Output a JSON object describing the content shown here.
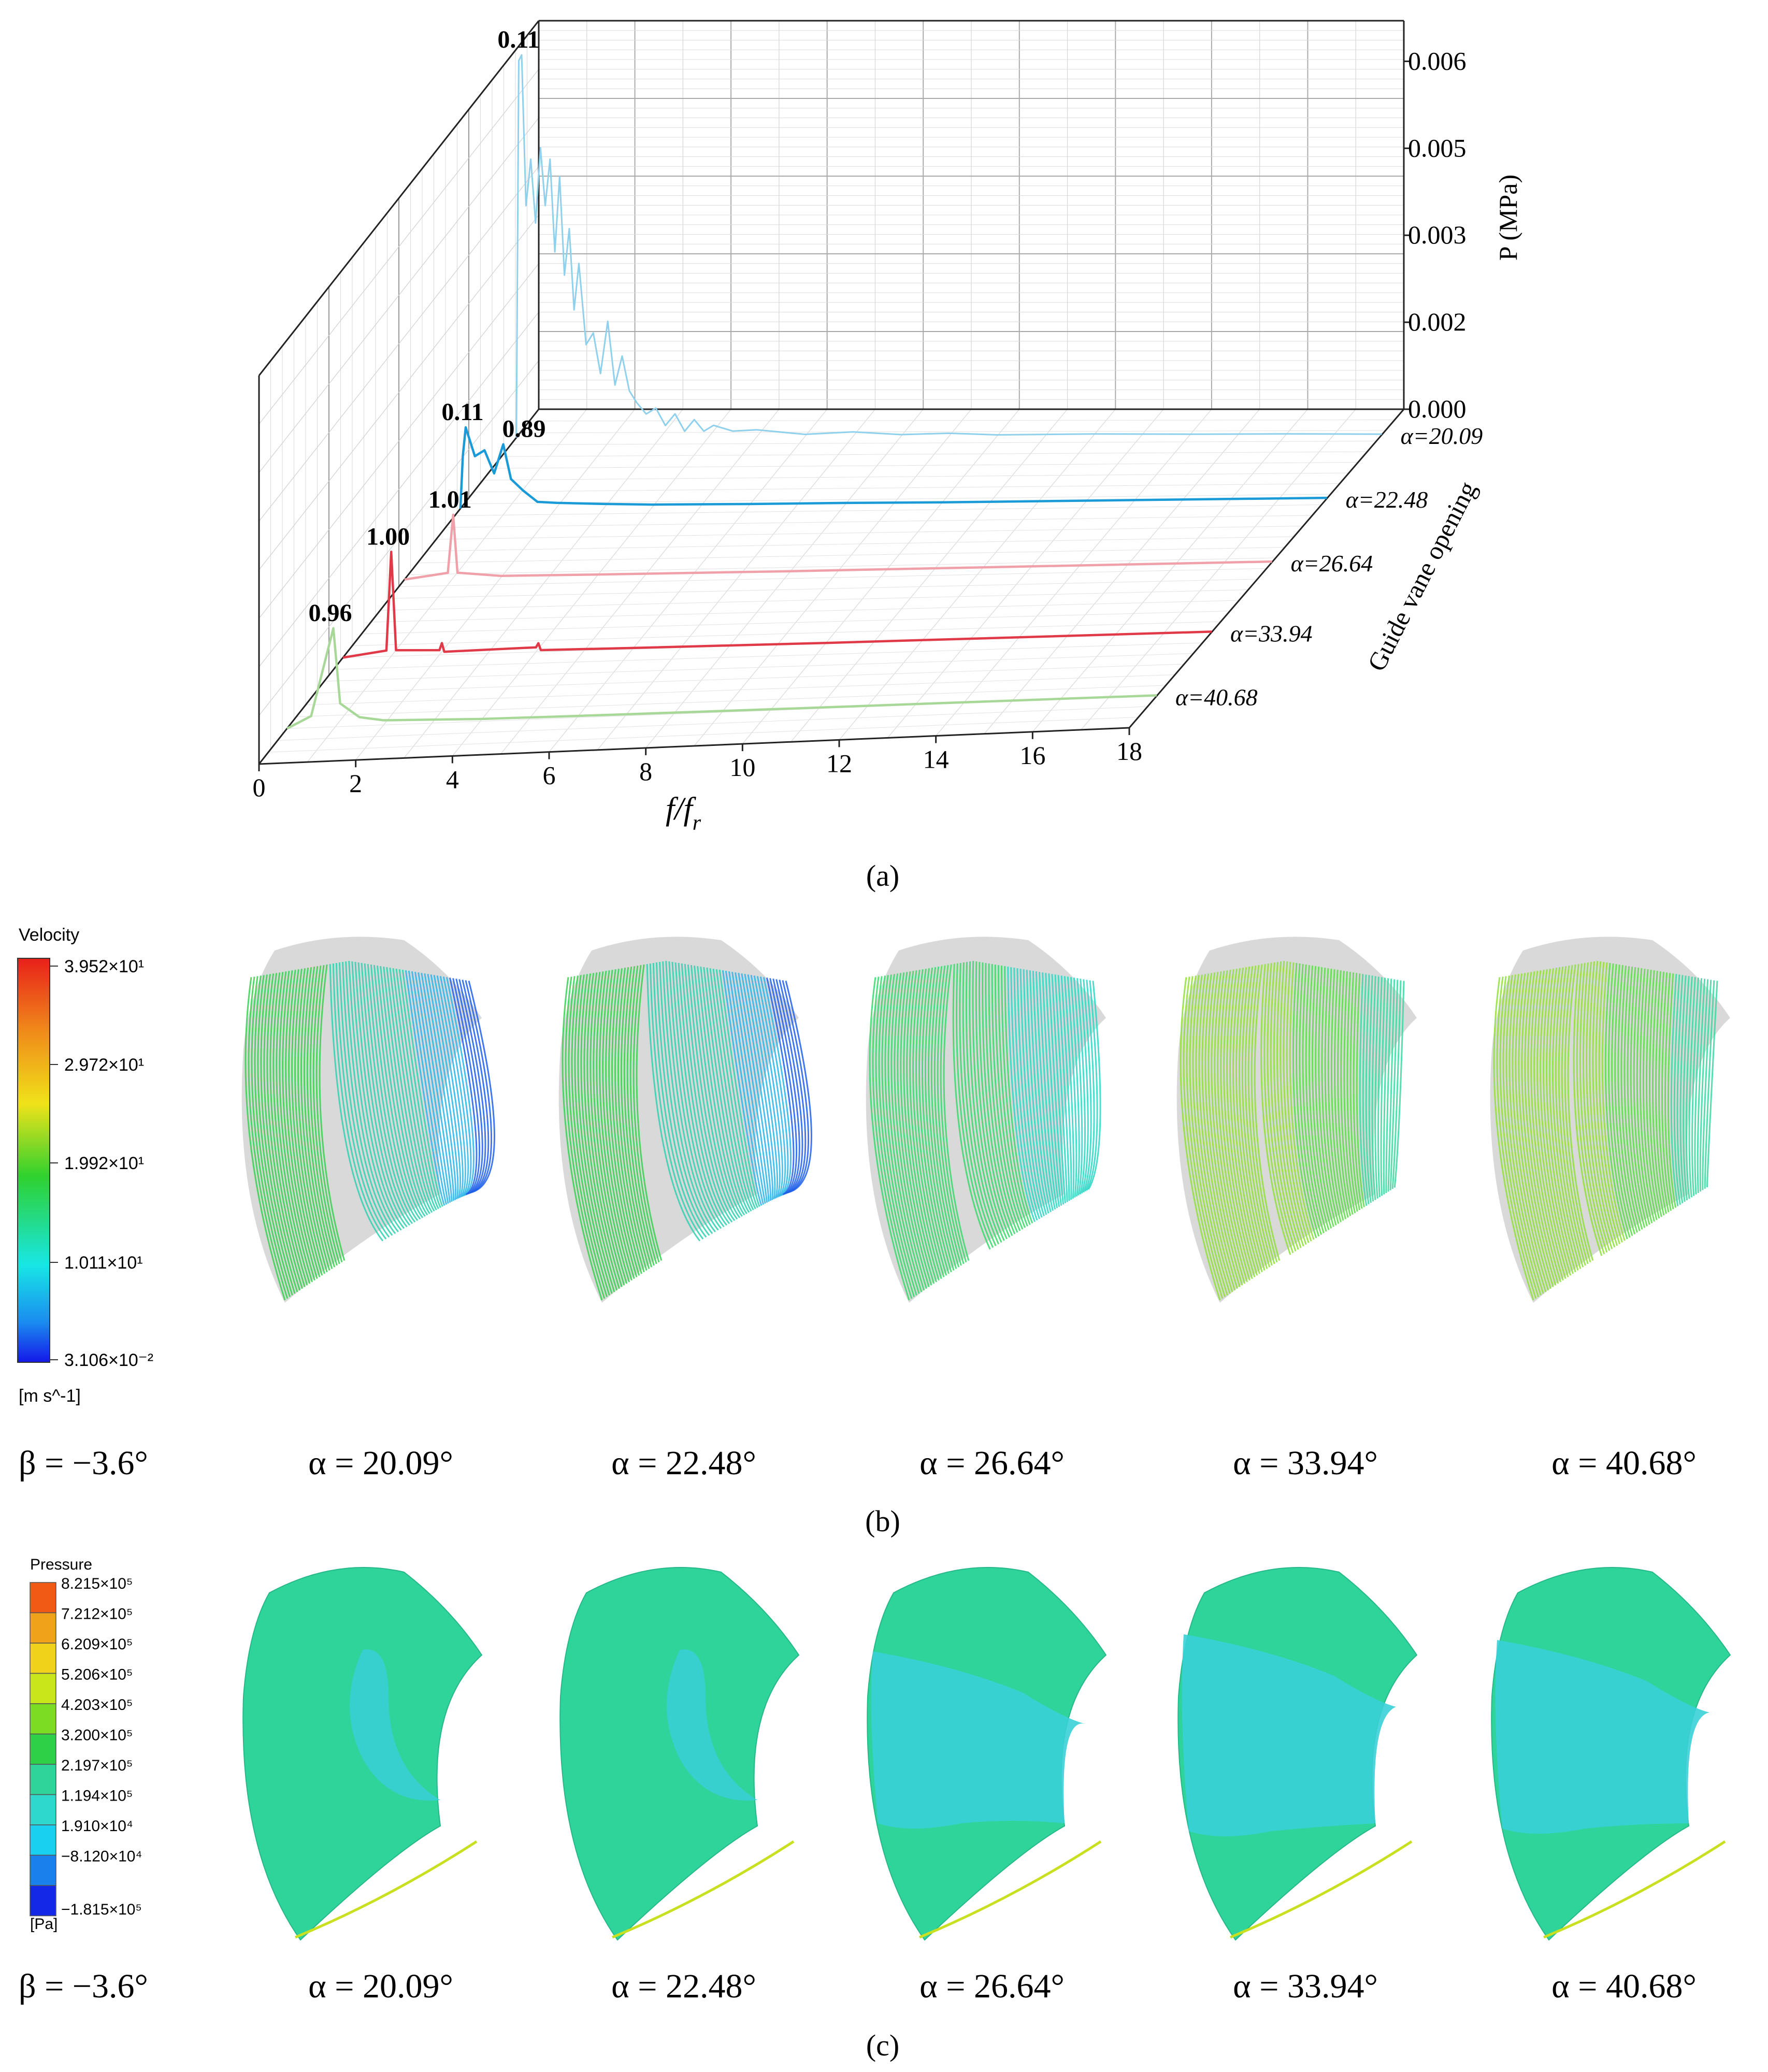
{
  "colors": {
    "series_20_09": "#8fd0ec",
    "series_22_48": "#1a9ad6",
    "series_26_64": "#f0a0a8",
    "series_33_94": "#e03a48",
    "series_40_68": "#a8d898",
    "streamline_bg": "#d9d9d9",
    "surface_main": "#2fd49a",
    "surface_low": "#3ad0d8"
  },
  "chart_data": {
    "type": "line",
    "view": "3d-waterfall",
    "title": "",
    "xlabel": "f/f",
    "xlabel_sub": "r",
    "zlabel": "P (MPa)",
    "ylabel": "Guide vane opening",
    "x_range": [
      0,
      18
    ],
    "x_ticks": [
      "0",
      "2",
      "4",
      "6",
      "8",
      "10",
      "12",
      "14",
      "16",
      "18"
    ],
    "z_range": [
      0,
      0.0067
    ],
    "z_ticks": [
      {
        "value": 0,
        "label": "0.000"
      },
      {
        "value": 0.0015,
        "label": "0.002"
      },
      {
        "value": 0.003,
        "label": "0.003"
      },
      {
        "value": 0.0045,
        "label": "0.005"
      },
      {
        "value": 0.006,
        "label": "0.006"
      }
    ],
    "series": [
      {
        "name": "α=20.09",
        "opening": 20.09,
        "color_key": "series_20_09",
        "points": [
          [
            0,
            0
          ],
          [
            0.05,
            0.0065
          ],
          [
            0.11,
            0.0066
          ],
          [
            0.2,
            0.004
          ],
          [
            0.3,
            0.0048
          ],
          [
            0.4,
            0.0037
          ],
          [
            0.5,
            0.005
          ],
          [
            0.6,
            0.004
          ],
          [
            0.7,
            0.0048
          ],
          [
            0.8,
            0.0032
          ],
          [
            0.9,
            0.0045
          ],
          [
            1.0,
            0.0028
          ],
          [
            1.1,
            0.0036
          ],
          [
            1.2,
            0.0022
          ],
          [
            1.3,
            0.003
          ],
          [
            1.45,
            0.0016
          ],
          [
            1.6,
            0.0018
          ],
          [
            1.75,
            0.0011
          ],
          [
            1.9,
            0.002
          ],
          [
            2.05,
            0.0009
          ],
          [
            2.2,
            0.0014
          ],
          [
            2.35,
            0.0008
          ],
          [
            2.5,
            0.0006
          ],
          [
            2.7,
            0.0004
          ],
          [
            2.9,
            0.0005
          ],
          [
            3.1,
            0.0002
          ],
          [
            3.3,
            0.0004
          ],
          [
            3.5,
            0.0001
          ],
          [
            3.7,
            0.0003
          ],
          [
            3.9,
            0.0001
          ],
          [
            4.1,
            0.0002
          ],
          [
            4.5,
            0.0001
          ],
          [
            5,
            0.00012
          ],
          [
            6,
            4e-05
          ],
          [
            7,
            8e-05
          ],
          [
            8,
            3e-05
          ],
          [
            9,
            5e-05
          ],
          [
            10,
            2e-05
          ],
          [
            12,
            3e-05
          ],
          [
            14,
            2e-05
          ],
          [
            16,
            2e-05
          ],
          [
            18,
            1e-05
          ]
        ],
        "peak_label": "0.11",
        "peak_x": 0.11,
        "peak_y": 0.0066
      },
      {
        "name": "α=22.48",
        "opening": 22.48,
        "color_key": "series_22_48",
        "points": [
          [
            0,
            0
          ],
          [
            0.05,
            0.0009
          ],
          [
            0.11,
            0.0014
          ],
          [
            0.3,
            0.0009
          ],
          [
            0.5,
            0.001
          ],
          [
            0.7,
            0.0006
          ],
          [
            0.89,
            0.0011
          ],
          [
            1.05,
            0.0005
          ],
          [
            1.3,
            0.0003
          ],
          [
            1.6,
            0.0001
          ],
          [
            2,
            8e-05
          ],
          [
            3,
            5e-05
          ],
          [
            4,
            3e-05
          ],
          [
            6,
            2e-05
          ],
          [
            8,
            2e-05
          ],
          [
            10,
            1e-05
          ],
          [
            14,
            1e-05
          ],
          [
            18,
            1e-05
          ]
        ],
        "peak_labels": [
          {
            "text": "0.11",
            "x": 0.11,
            "y": 0.0014
          },
          {
            "text": "0.89",
            "x": 0.89,
            "y": 0.0011
          }
        ]
      },
      {
        "name": "α=26.64",
        "opening": 26.64,
        "color_key": "series_26_64",
        "points": [
          [
            0,
            0
          ],
          [
            0.9,
            0.0001
          ],
          [
            1.01,
            0.0011
          ],
          [
            1.1,
            0.0001
          ],
          [
            2,
            3e-05
          ],
          [
            4,
            2e-05
          ],
          [
            8,
            1e-05
          ],
          [
            18,
            1e-05
          ]
        ],
        "peak_label": "1.01",
        "peak_x": 1.01,
        "peak_y": 0.0011
      },
      {
        "name": "α=33.94",
        "opening": 33.94,
        "color_key": "series_33_94",
        "points": [
          [
            0,
            0
          ],
          [
            0.9,
            0.0001
          ],
          [
            1.0,
            0.0018
          ],
          [
            1.1,
            0.0001
          ],
          [
            2,
            8e-05
          ],
          [
            2.05,
            0.0002
          ],
          [
            2.1,
            5e-05
          ],
          [
            4,
            8e-05
          ],
          [
            4.05,
            0.00015
          ],
          [
            4.1,
            3e-05
          ],
          [
            6,
            2e-05
          ],
          [
            10,
            1e-05
          ],
          [
            18,
            1e-05
          ]
        ],
        "peak_label": "1.00",
        "peak_x": 1.0,
        "peak_y": 0.0018
      },
      {
        "name": "α=40.68",
        "opening": 40.68,
        "color_key": "series_40_68",
        "points": [
          [
            0,
            0
          ],
          [
            0.5,
            0.0002
          ],
          [
            0.96,
            0.0017
          ],
          [
            1.1,
            0.0004
          ],
          [
            1.5,
            0.00015
          ],
          [
            2,
            8e-05
          ],
          [
            3,
            6e-05
          ],
          [
            4,
            4e-05
          ],
          [
            6,
            3e-05
          ],
          [
            10,
            2e-05
          ],
          [
            18,
            1e-05
          ]
        ],
        "peak_label": "0.96",
        "peak_x": 0.96,
        "peak_y": 0.0017
      }
    ]
  },
  "panel_a": {
    "label": "(a)"
  },
  "panel_b": {
    "label": "(b)",
    "legend_title": "Velocity",
    "legend_values": [
      "3.952×10¹",
      "2.972×10¹",
      "1.992×10¹",
      "1.011×10¹",
      "3.106×10⁻²"
    ],
    "legend_unit": "[m s^-1]",
    "beta_label": "β = −3.6°",
    "captions": [
      "α = 20.09°",
      "α = 22.48°",
      "α = 26.64°",
      "α = 33.94°",
      "α = 40.68°"
    ],
    "flow_strength": [
      0.15,
      0.15,
      0.55,
      0.8,
      0.85
    ]
  },
  "panel_c": {
    "label": "(c)",
    "legend_title": "Pressure",
    "legend_values": [
      "8.215×10⁵",
      "7.212×10⁵",
      "6.209×10⁵",
      "5.206×10⁵",
      "4.203×10⁵",
      "3.200×10⁵",
      "2.197×10⁵",
      "1.194×10⁵",
      "1.910×10⁴",
      "−8.120×10⁴",
      "−1.815×10⁵"
    ],
    "legend_unit": "[Pa]",
    "beta_label": "β = −3.6°",
    "captions": [
      "α = 20.09°",
      "α = 22.48°",
      "α = 26.64°",
      "α = 33.94°",
      "α = 40.68°"
    ],
    "low_pressure_extent": [
      0.2,
      0.2,
      0.6,
      0.75,
      0.7
    ]
  }
}
